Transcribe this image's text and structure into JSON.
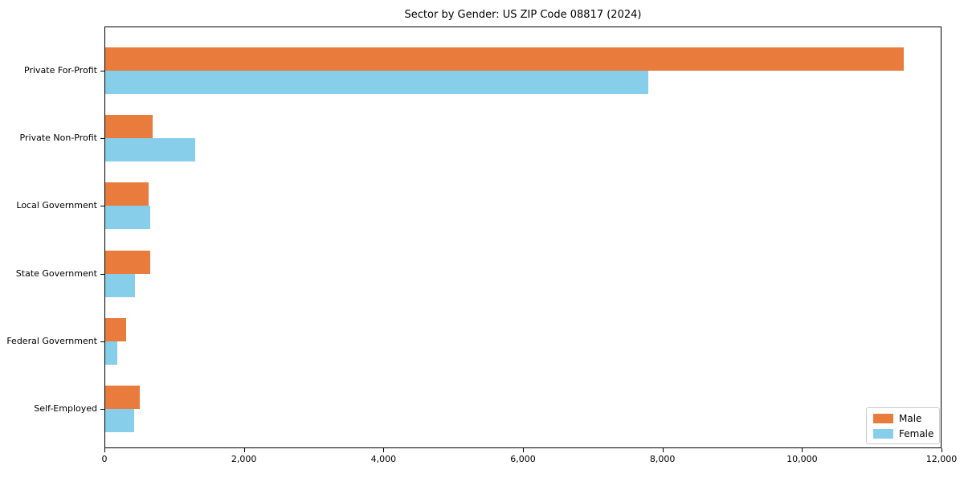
{
  "chart_data": {
    "type": "bar",
    "orientation": "horizontal",
    "title": "Sector by Gender: US ZIP Code 08817 (2024)",
    "categories": [
      "Private For-Profit",
      "Private Non-Profit",
      "Local Government",
      "State Government",
      "Federal Government",
      "Self-Employed"
    ],
    "series": [
      {
        "name": "Male",
        "color": "#e97b3d",
        "values": [
          11450,
          680,
          620,
          650,
          295,
          490
        ]
      },
      {
        "name": "Female",
        "color": "#87ceeb",
        "values": [
          7780,
          1290,
          650,
          430,
          170,
          420
        ]
      }
    ],
    "xlabel": "",
    "ylabel": "",
    "xlim": [
      0,
      12000
    ],
    "xticks": [
      0,
      2000,
      4000,
      6000,
      8000,
      10000,
      12000
    ],
    "xtick_labels": [
      "0",
      "2,000",
      "4,000",
      "6,000",
      "8,000",
      "10,000",
      "12,000"
    ],
    "grid": false,
    "legend_position": "lower right"
  }
}
